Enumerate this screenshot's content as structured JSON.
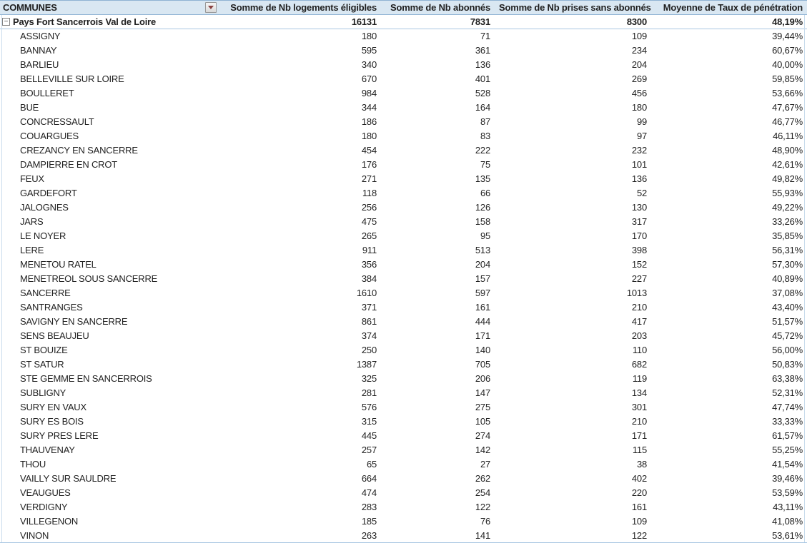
{
  "colors": {
    "header-bg": "#d9e7f2",
    "header-border": "#8fb3d3",
    "total-border": "#a9c7e2",
    "grid-edge": "#c9dcec",
    "filter-arrow": "#8b4242",
    "text": "#1f1f1f"
  },
  "icons": {
    "collapse_minus": "−",
    "filter_arrow": "▾"
  },
  "pivot": {
    "columns": [
      "COMMUNES",
      "Somme de Nb logements éligibles",
      "Somme de Nb abonnés",
      "Somme de Nb prises sans abonnés",
      "Moyenne de Taux de pénétration"
    ],
    "total_row": {
      "label": "Pays Fort Sancerrois Val de Loire",
      "values": [
        "16131",
        "7831",
        "8300",
        "48,19%"
      ]
    },
    "rows": [
      [
        "ASSIGNY",
        "180",
        "71",
        "109",
        "39,44%"
      ],
      [
        "BANNAY",
        "595",
        "361",
        "234",
        "60,67%"
      ],
      [
        "BARLIEU",
        "340",
        "136",
        "204",
        "40,00%"
      ],
      [
        "BELLEVILLE SUR LOIRE",
        "670",
        "401",
        "269",
        "59,85%"
      ],
      [
        "BOULLERET",
        "984",
        "528",
        "456",
        "53,66%"
      ],
      [
        "BUE",
        "344",
        "164",
        "180",
        "47,67%"
      ],
      [
        "CONCRESSAULT",
        "186",
        "87",
        "99",
        "46,77%"
      ],
      [
        "COUARGUES",
        "180",
        "83",
        "97",
        "46,11%"
      ],
      [
        "CREZANCY EN SANCERRE",
        "454",
        "222",
        "232",
        "48,90%"
      ],
      [
        "DAMPIERRE EN CROT",
        "176",
        "75",
        "101",
        "42,61%"
      ],
      [
        "FEUX",
        "271",
        "135",
        "136",
        "49,82%"
      ],
      [
        "GARDEFORT",
        "118",
        "66",
        "52",
        "55,93%"
      ],
      [
        "JALOGNES",
        "256",
        "126",
        "130",
        "49,22%"
      ],
      [
        "JARS",
        "475",
        "158",
        "317",
        "33,26%"
      ],
      [
        "LE NOYER",
        "265",
        "95",
        "170",
        "35,85%"
      ],
      [
        "LERE",
        "911",
        "513",
        "398",
        "56,31%"
      ],
      [
        "MENETOU RATEL",
        "356",
        "204",
        "152",
        "57,30%"
      ],
      [
        "MENETREOL SOUS SANCERRE",
        "384",
        "157",
        "227",
        "40,89%"
      ],
      [
        "SANCERRE",
        "1610",
        "597",
        "1013",
        "37,08%"
      ],
      [
        "SANTRANGES",
        "371",
        "161",
        "210",
        "43,40%"
      ],
      [
        "SAVIGNY EN SANCERRE",
        "861",
        "444",
        "417",
        "51,57%"
      ],
      [
        "SENS BEAUJEU",
        "374",
        "171",
        "203",
        "45,72%"
      ],
      [
        "ST BOUIZE",
        "250",
        "140",
        "110",
        "56,00%"
      ],
      [
        "ST SATUR",
        "1387",
        "705",
        "682",
        "50,83%"
      ],
      [
        "STE GEMME EN SANCERROIS",
        "325",
        "206",
        "119",
        "63,38%"
      ],
      [
        "SUBLIGNY",
        "281",
        "147",
        "134",
        "52,31%"
      ],
      [
        "SURY EN VAUX",
        "576",
        "275",
        "301",
        "47,74%"
      ],
      [
        "SURY ES BOIS",
        "315",
        "105",
        "210",
        "33,33%"
      ],
      [
        "SURY PRES LERE",
        "445",
        "274",
        "171",
        "61,57%"
      ],
      [
        "THAUVENAY",
        "257",
        "142",
        "115",
        "55,25%"
      ],
      [
        "THOU",
        "65",
        "27",
        "38",
        "41,54%"
      ],
      [
        "VAILLY SUR SAULDRE",
        "664",
        "262",
        "402",
        "39,46%"
      ],
      [
        "VEAUGUES",
        "474",
        "254",
        "220",
        "53,59%"
      ],
      [
        "VERDIGNY",
        "283",
        "122",
        "161",
        "43,11%"
      ],
      [
        "VILLEGENON",
        "185",
        "76",
        "109",
        "41,08%"
      ],
      [
        "VINON",
        "263",
        "141",
        "122",
        "53,61%"
      ]
    ]
  }
}
